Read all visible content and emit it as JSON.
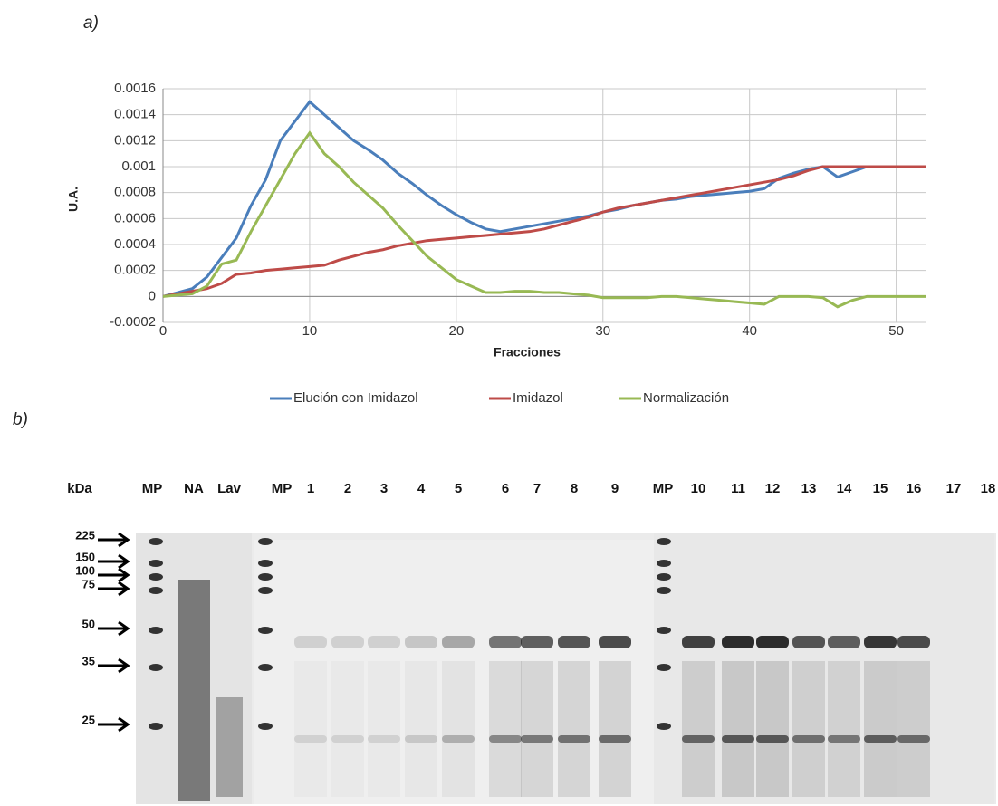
{
  "panel_labels": [
    "a)",
    "b)"
  ],
  "chart_data": {
    "type": "line",
    "x_label": "Fracciones",
    "y_label": "U.A.",
    "x": [
      0,
      1,
      2,
      3,
      4,
      5,
      6,
      7,
      8,
      9,
      10,
      11,
      12,
      13,
      14,
      15,
      16,
      17,
      18,
      19,
      20,
      21,
      22,
      23,
      24,
      25,
      26,
      27,
      28,
      29,
      30,
      31,
      32,
      33,
      34,
      35,
      36,
      37,
      38,
      39,
      40,
      41,
      42,
      43,
      44,
      45,
      46,
      47,
      48,
      49,
      50,
      51,
      52
    ],
    "xlim": [
      0,
      52
    ],
    "xticks": [
      0,
      10,
      20,
      30,
      40,
      50
    ],
    "ylim": [
      -0.0002,
      0.0016
    ],
    "yticks": [
      -0.0002,
      0,
      0.0002,
      0.0004,
      0.0006,
      0.0008,
      0.001,
      0.0012,
      0.0014,
      0.0016
    ],
    "grid": true,
    "legend": "bottom",
    "series": [
      {
        "name": "Elución con Imidazol",
        "color": "#4a7ebb",
        "values": [
          0,
          3e-05,
          6e-05,
          0.00015,
          0.0003,
          0.00045,
          0.0007,
          0.0009,
          0.0012,
          0.00135,
          0.0015,
          0.0014,
          0.0013,
          0.0012,
          0.00113,
          0.00105,
          0.00095,
          0.00087,
          0.00078,
          0.0007,
          0.00063,
          0.00057,
          0.00052,
          0.0005,
          0.00052,
          0.00054,
          0.00056,
          0.00058,
          0.0006,
          0.00062,
          0.00065,
          0.00067,
          0.0007,
          0.00072,
          0.00074,
          0.00075,
          0.00077,
          0.00078,
          0.00079,
          0.0008,
          0.00081,
          0.00083,
          0.00091,
          0.00095,
          0.00098,
          0.001,
          0.00092,
          0.00096,
          0.001,
          0.001,
          0.001,
          0.001,
          0.001
        ]
      },
      {
        "name": "Imidazol",
        "color": "#be4b48",
        "values": [
          0,
          2e-05,
          4e-05,
          6e-05,
          0.0001,
          0.00017,
          0.00018,
          0.0002,
          0.00021,
          0.00022,
          0.00023,
          0.00024,
          0.00028,
          0.00031,
          0.00034,
          0.00036,
          0.00039,
          0.00041,
          0.00043,
          0.00044,
          0.00045,
          0.00046,
          0.00047,
          0.00048,
          0.00049,
          0.0005,
          0.00052,
          0.00055,
          0.00058,
          0.00061,
          0.00065,
          0.00068,
          0.0007,
          0.00072,
          0.00074,
          0.00076,
          0.00078,
          0.0008,
          0.00082,
          0.00084,
          0.00086,
          0.00088,
          0.0009,
          0.00093,
          0.00097,
          0.001,
          0.001,
          0.001,
          0.001,
          0.001,
          0.001,
          0.001,
          0.001
        ]
      },
      {
        "name": "Normalización",
        "color": "#98b954",
        "values": [
          0,
          1e-05,
          2e-05,
          8e-05,
          0.00025,
          0.00028,
          0.0005,
          0.0007,
          0.0009,
          0.0011,
          0.00126,
          0.0011,
          0.001,
          0.00088,
          0.00078,
          0.00068,
          0.00055,
          0.00043,
          0.00031,
          0.00022,
          0.00013,
          8e-05,
          3e-05,
          3e-05,
          4e-05,
          4e-05,
          3e-05,
          3e-05,
          2e-05,
          1e-05,
          -1e-05,
          -1e-05,
          -1e-05,
          -1e-05,
          0,
          0,
          -1e-05,
          -2e-05,
          -3e-05,
          -4e-05,
          -5e-05,
          -6e-05,
          0,
          0,
          0,
          -1e-05,
          -8e-05,
          -3e-05,
          0,
          0,
          0,
          0,
          0
        ]
      }
    ]
  },
  "gel": {
    "kda_label": "kDa",
    "lane_labels": [
      "MP",
      "NA",
      "Lav",
      "MP",
      "1",
      "2",
      "3",
      "4",
      "5",
      "6",
      "7",
      "8",
      "9",
      "MP",
      "10",
      "11",
      "12",
      "13",
      "14",
      "15",
      "16",
      "17",
      "18"
    ],
    "markers": [
      "225",
      "150",
      "100",
      "75",
      "50",
      "35",
      "25"
    ]
  }
}
